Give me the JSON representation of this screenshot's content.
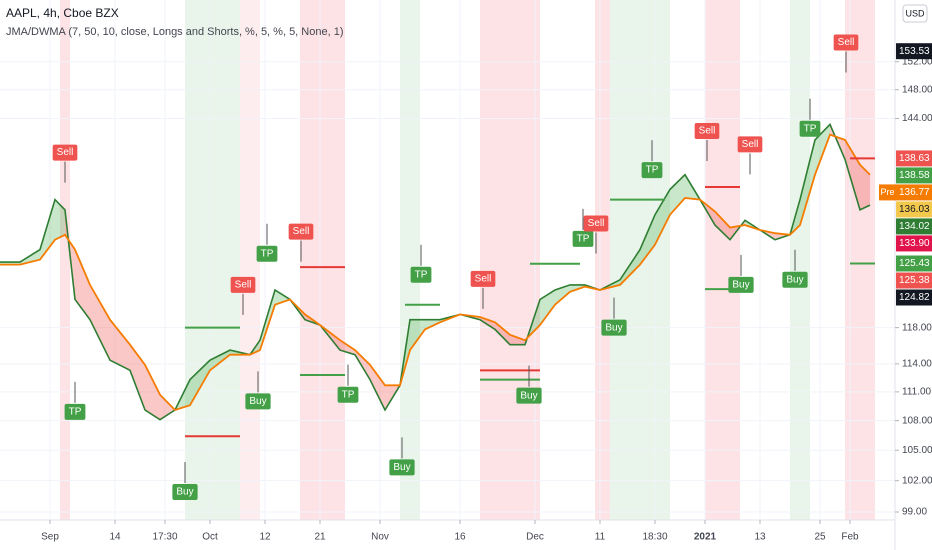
{
  "chart_data": {
    "type": "jma_dwma",
    "title": "AAPL, 4h, Cboe BZX",
    "subtitle": "JMA/DWMA (7, 50, 10, close, Longs and Shorts, %, 5, %, 5, None, 1)",
    "currency": "USD",
    "log_scale": true,
    "grid": true,
    "xlim": [
      0,
      179
    ],
    "ylim": [
      98.25,
      161.2
    ],
    "yticks": [
      {
        "value": 99,
        "label": "99.00"
      },
      {
        "value": 102,
        "label": "102.00"
      },
      {
        "value": 105,
        "label": "105.00"
      },
      {
        "value": 108,
        "label": "108.00"
      },
      {
        "value": 111,
        "label": "111.00"
      },
      {
        "value": 114,
        "label": "114.00"
      },
      {
        "value": 118,
        "label": "118.00"
      },
      {
        "value": 144,
        "label": "144.00"
      },
      {
        "value": 148,
        "label": "148.00"
      },
      {
        "value": 152,
        "label": "152.00"
      }
    ],
    "xticks": [
      {
        "value": 10,
        "label": "Sep"
      },
      {
        "value": 23,
        "label": "14"
      },
      {
        "value": 33,
        "label": "17:30"
      },
      {
        "value": 42,
        "label": "Oct"
      },
      {
        "value": 53,
        "label": "12"
      },
      {
        "value": 64,
        "label": "21"
      },
      {
        "value": 76,
        "label": "Nov"
      },
      {
        "value": 92,
        "label": "16"
      },
      {
        "value": 107,
        "label": "Dec"
      },
      {
        "value": 120,
        "label": "11"
      },
      {
        "value": 131,
        "label": "18:30"
      },
      {
        "value": 141,
        "label": "2021"
      },
      {
        "value": 152,
        "label": "13"
      },
      {
        "value": 164,
        "label": "25"
      },
      {
        "value": 170,
        "label": "Feb"
      }
    ],
    "x": [
      0,
      4,
      8,
      11,
      13,
      15,
      18,
      22,
      26,
      29,
      32,
      35,
      38,
      42,
      46,
      50,
      52,
      55,
      58,
      61,
      64,
      68,
      71,
      74,
      77,
      80,
      82,
      85,
      88,
      92,
      96,
      99,
      102,
      105,
      108,
      111,
      114,
      117,
      120,
      124,
      128,
      131,
      134,
      137,
      140,
      143,
      146,
      149,
      152,
      155,
      158,
      160,
      163,
      166,
      169,
      172,
      174
    ],
    "series": [
      {
        "name": "JMA",
        "color": "#2e7d32",
        "values": [
          125.6,
          125.6,
          127.1,
          133.3,
          132.0,
          121.2,
          118.9,
          114.4,
          113.3,
          109.1,
          108.1,
          109.1,
          112.3,
          114.4,
          115.5,
          115.0,
          116.6,
          122.3,
          121.2,
          118.9,
          118.3,
          115.5,
          115.0,
          112.3,
          109.1,
          111.7,
          118.9,
          118.9,
          118.9,
          119.5,
          118.9,
          117.8,
          116.1,
          116.1,
          121.2,
          122.3,
          122.9,
          122.9,
          122.3,
          123.5,
          127.1,
          131.4,
          134.6,
          136.5,
          133.3,
          130.1,
          128.3,
          130.7,
          129.5,
          128.3,
          128.9,
          133.3,
          141.1,
          143.2,
          138.5,
          132.0,
          132.6
        ]
      },
      {
        "name": "DWMA",
        "color": "#f57c00",
        "values": [
          125.3,
          125.3,
          125.9,
          128.3,
          128.9,
          127.1,
          122.9,
          118.9,
          116.1,
          113.9,
          110.7,
          109.1,
          109.6,
          113.3,
          115.0,
          115.0,
          115.5,
          120.6,
          121.2,
          119.5,
          118.3,
          116.6,
          115.5,
          113.9,
          111.7,
          111.7,
          115.5,
          117.8,
          118.6,
          119.5,
          119.2,
          118.6,
          117.2,
          116.6,
          118.3,
          120.6,
          122.1,
          122.7,
          122.3,
          122.9,
          125.3,
          127.7,
          131.4,
          133.5,
          133.3,
          131.8,
          129.8,
          130.1,
          129.5,
          129.1,
          128.9,
          130.1,
          136.5,
          141.8,
          141.1,
          137.8,
          136.5
        ]
      }
    ],
    "zones": [
      {
        "x": [
          12,
          14
        ],
        "color": "rgba(242,54,69,0.14)"
      },
      {
        "x": [
          37,
          48
        ],
        "color": "rgba(76,175,80,0.12)"
      },
      {
        "x": [
          48,
          52
        ],
        "color": "rgba(242,54,69,0.09)"
      },
      {
        "x": [
          60,
          69
        ],
        "color": "rgba(242,54,69,0.14)"
      },
      {
        "x": [
          80,
          84
        ],
        "color": "rgba(76,175,80,0.12)"
      },
      {
        "x": [
          96,
          108
        ],
        "color": "rgba(242,54,69,0.14)"
      },
      {
        "x": [
          119,
          122
        ],
        "color": "rgba(242,54,69,0.14)"
      },
      {
        "x": [
          122,
          134
        ],
        "color": "rgba(76,175,80,0.12)"
      },
      {
        "x": [
          141,
          148
        ],
        "color": "rgba(242,54,69,0.14)"
      },
      {
        "x": [
          158,
          162
        ],
        "color": "rgba(76,175,80,0.12)"
      },
      {
        "x": [
          169,
          175
        ],
        "color": "rgba(242,54,69,0.14)"
      }
    ],
    "levels": [
      {
        "x0": 37,
        "x1": 48,
        "y": 118.0,
        "color": "#43a047"
      },
      {
        "x0": 37,
        "x1": 48,
        "y": 106.4,
        "color": "#e53935"
      },
      {
        "x0": 60,
        "x1": 69,
        "y": 125.0,
        "color": "#e53935"
      },
      {
        "x0": 60,
        "x1": 69,
        "y": 112.8,
        "color": "#43a047"
      },
      {
        "x0": 81,
        "x1": 88,
        "y": 120.6,
        "color": "#43a047"
      },
      {
        "x0": 96,
        "x1": 108,
        "y": 113.3,
        "color": "#e53935"
      },
      {
        "x0": 96,
        "x1": 108,
        "y": 112.3,
        "color": "#43a047"
      },
      {
        "x0": 106,
        "x1": 116,
        "y": 125.4,
        "color": "#43a047"
      },
      {
        "x0": 122,
        "x1": 133,
        "y": 133.3,
        "color": "#43a047"
      },
      {
        "x0": 141,
        "x1": 148,
        "y": 134.9,
        "color": "#e53935"
      },
      {
        "x0": 141,
        "x1": 148,
        "y": 122.4,
        "color": "#43a047"
      },
      {
        "x0": 170,
        "x1": 175,
        "y": 138.63,
        "color": "#e53935"
      },
      {
        "x0": 170,
        "x1": 175,
        "y": 125.43,
        "color": "#43a047"
      }
    ],
    "signals": [
      {
        "label": "Sell",
        "x": 13,
        "y": 139.4,
        "color": "#ef5350"
      },
      {
        "label": "TP",
        "x": 15,
        "y": 108.9,
        "color": "#43a047"
      },
      {
        "label": "Buy",
        "x": 37,
        "y": 100.9,
        "color": "#43a047"
      },
      {
        "label": "Sell",
        "x": 48.6,
        "y": 122.9,
        "color": "#ef5350"
      },
      {
        "label": "Buy",
        "x": 51.6,
        "y": 110.0,
        "color": "#43a047"
      },
      {
        "label": "TP",
        "x": 53.4,
        "y": 126.6,
        "color": "#43a047"
      },
      {
        "label": "Sell",
        "x": 60.2,
        "y": 129.3,
        "color": "#ef5350"
      },
      {
        "label": "TP",
        "x": 69.6,
        "y": 110.7,
        "color": "#43a047"
      },
      {
        "label": "Buy",
        "x": 80.4,
        "y": 103.3,
        "color": "#43a047"
      },
      {
        "label": "TP",
        "x": 84.2,
        "y": 124.1,
        "color": "#43a047"
      },
      {
        "label": "Sell",
        "x": 96.6,
        "y": 123.6,
        "color": "#ef5350"
      },
      {
        "label": "Buy",
        "x": 105.8,
        "y": 110.6,
        "color": "#43a047"
      },
      {
        "label": "TP",
        "x": 116.6,
        "y": 128.4,
        "color": "#43a047"
      },
      {
        "label": "Sell",
        "x": 119.2,
        "y": 130.3,
        "color": "#ef5350"
      },
      {
        "label": "Buy",
        "x": 122.8,
        "y": 118.0,
        "color": "#43a047"
      },
      {
        "label": "TP",
        "x": 130.4,
        "y": 137.1,
        "color": "#43a047"
      },
      {
        "label": "Sell",
        "x": 141.4,
        "y": 142.3,
        "color": "#ef5350"
      },
      {
        "label": "Buy",
        "x": 148.2,
        "y": 122.9,
        "color": "#43a047"
      },
      {
        "label": "Sell",
        "x": 150,
        "y": 140.5,
        "color": "#ef5350"
      },
      {
        "label": "Buy",
        "x": 159,
        "y": 123.5,
        "color": "#43a047"
      },
      {
        "label": "TP",
        "x": 162,
        "y": 142.6,
        "color": "#43a047"
      },
      {
        "label": "Sell",
        "x": 169.2,
        "y": 154.8,
        "color": "#ef5350"
      }
    ],
    "price_labels": [
      {
        "value": 153.53,
        "label": "153.53",
        "color": "#131722"
      },
      {
        "value": 138.63,
        "label": "138.63",
        "color": "#ef5350"
      },
      {
        "value": 138.58,
        "label": "138.58",
        "color": "#43a047"
      },
      {
        "value": 136.77,
        "label": "136.77",
        "color": "#f57c00",
        "tag": "Pre"
      },
      {
        "value": 136.03,
        "label": "136.03",
        "color": "#f2c94c"
      },
      {
        "value": 134.02,
        "label": "134.02",
        "color": "#2e7d32"
      },
      {
        "value": 133.9,
        "label": "133.90",
        "color": "#e0134b"
      },
      {
        "value": 125.43,
        "label": "125.43",
        "color": "#43a047"
      },
      {
        "value": 125.38,
        "label": "125.38",
        "color": "#ef5350"
      },
      {
        "value": 124.82,
        "label": "124.82",
        "color": "#131722"
      }
    ]
  }
}
